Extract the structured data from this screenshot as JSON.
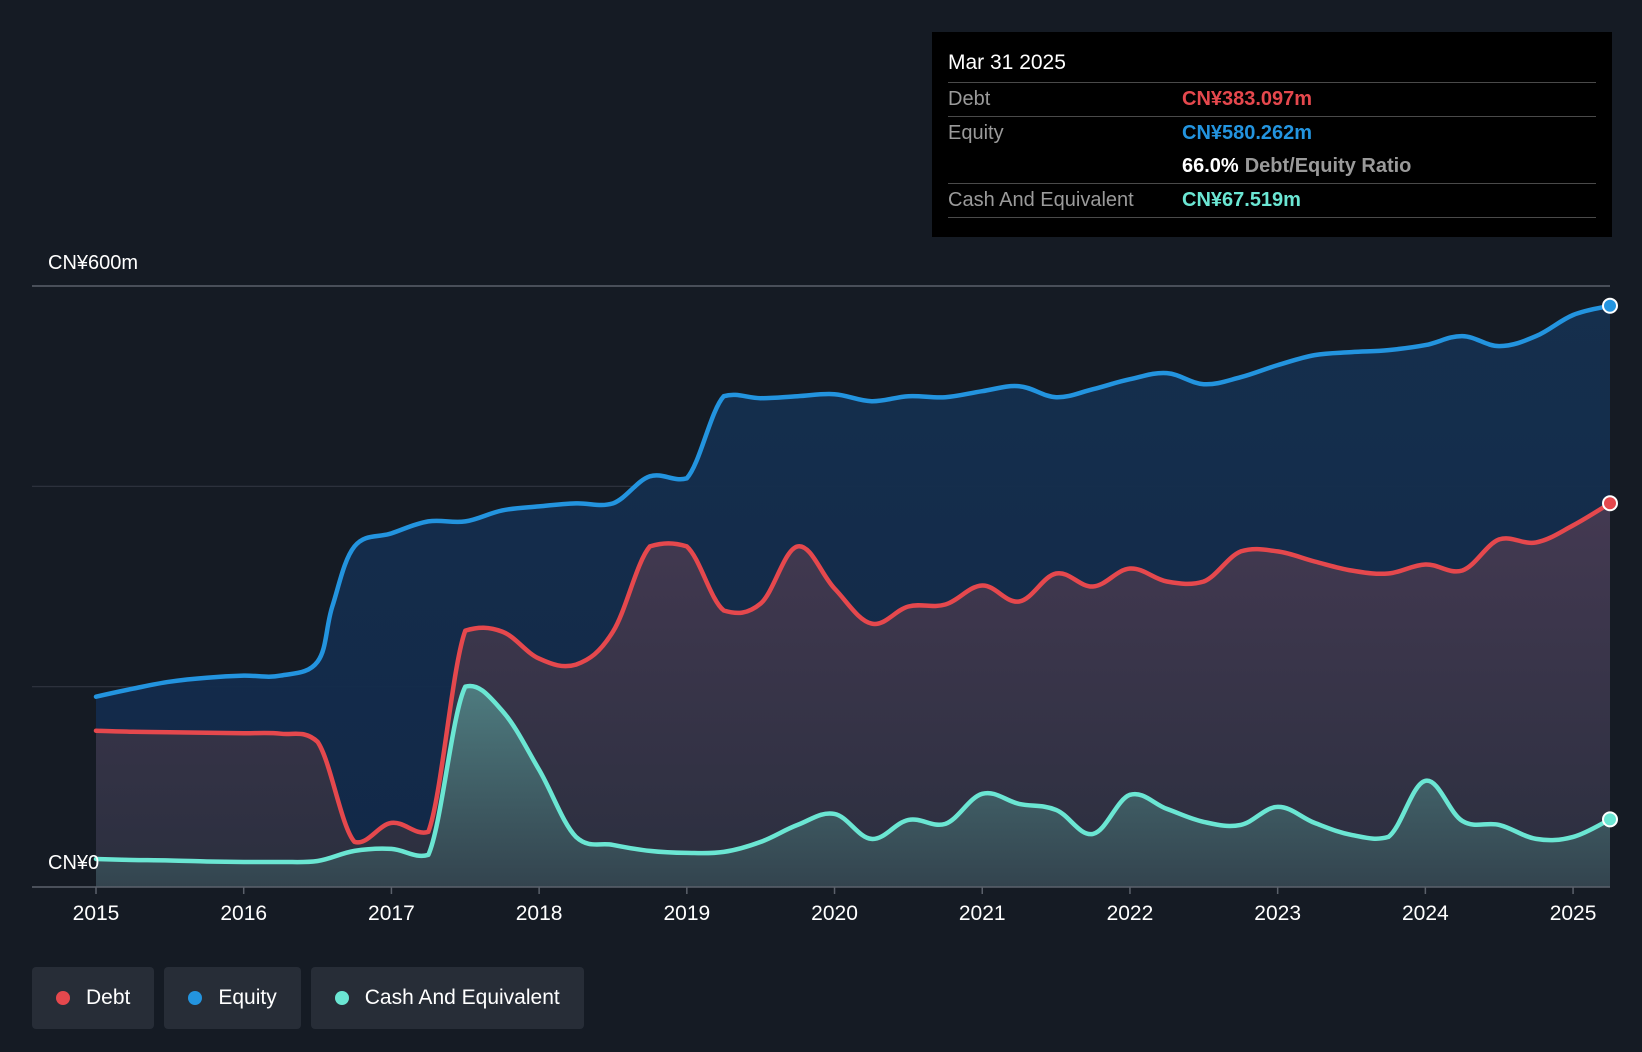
{
  "tooltip": {
    "date": "Mar 31 2025",
    "debt_label": "Debt",
    "debt_value": "CN¥383.097m",
    "equity_label": "Equity",
    "equity_value": "CN¥580.262m",
    "ratio_value": "66.0%",
    "ratio_label": "Debt/Equity Ratio",
    "cash_label": "Cash And Equivalent",
    "cash_value": "CN¥67.519m"
  },
  "legend": {
    "debt": "Debt",
    "equity": "Equity",
    "cash": "Cash And Equivalent"
  },
  "colors": {
    "debt": "#e5484d",
    "equity": "#2394df",
    "cash": "#6be6d3",
    "background": "#151b24"
  },
  "chart_data": {
    "type": "area",
    "title": "",
    "xlabel": "",
    "ylabel": "",
    "ylim": [
      0,
      600
    ],
    "xlim": [
      2015.0,
      2025.25
    ],
    "y_tick_labels": [
      {
        "value": 600,
        "label": "CN¥600m"
      },
      {
        "value": 0,
        "label": "CN¥0"
      }
    ],
    "gridlines": [
      0,
      200,
      400,
      600
    ],
    "x_ticks": [
      2015,
      2016,
      2017,
      2018,
      2019,
      2020,
      2021,
      2022,
      2023,
      2024,
      2025
    ],
    "series": [
      {
        "name": "Equity",
        "key": "equity",
        "points": [
          [
            2015.0,
            190
          ],
          [
            2015.25,
            198
          ],
          [
            2015.5,
            205
          ],
          [
            2015.75,
            209
          ],
          [
            2016.0,
            211
          ],
          [
            2016.25,
            211
          ],
          [
            2016.5,
            225
          ],
          [
            2016.6,
            280
          ],
          [
            2016.75,
            340
          ],
          [
            2017.0,
            353
          ],
          [
            2017.25,
            365
          ],
          [
            2017.5,
            365
          ],
          [
            2017.75,
            376
          ],
          [
            2018.0,
            380
          ],
          [
            2018.25,
            383
          ],
          [
            2018.5,
            383
          ],
          [
            2018.75,
            410
          ],
          [
            2019.0,
            408
          ],
          [
            2019.25,
            490
          ],
          [
            2019.5,
            488
          ],
          [
            2019.75,
            490
          ],
          [
            2020.0,
            492
          ],
          [
            2020.25,
            485
          ],
          [
            2020.5,
            490
          ],
          [
            2020.75,
            489
          ],
          [
            2021.0,
            495
          ],
          [
            2021.25,
            500
          ],
          [
            2021.5,
            489
          ],
          [
            2021.75,
            497
          ],
          [
            2022.0,
            507
          ],
          [
            2022.25,
            513
          ],
          [
            2022.5,
            502
          ],
          [
            2022.75,
            509
          ],
          [
            2023.0,
            521
          ],
          [
            2023.25,
            531
          ],
          [
            2023.5,
            534
          ],
          [
            2023.75,
            536
          ],
          [
            2024.0,
            541
          ],
          [
            2024.25,
            550
          ],
          [
            2024.5,
            540
          ],
          [
            2024.75,
            550
          ],
          [
            2025.0,
            571
          ],
          [
            2025.25,
            580.262
          ]
        ]
      },
      {
        "name": "Debt",
        "key": "debt",
        "points": [
          [
            2015.0,
            156
          ],
          [
            2015.25,
            155
          ],
          [
            2015.5,
            154.5
          ],
          [
            2015.75,
            154
          ],
          [
            2016.0,
            153.5
          ],
          [
            2016.25,
            153
          ],
          [
            2016.5,
            145
          ],
          [
            2016.75,
            45
          ],
          [
            2017.0,
            64
          ],
          [
            2017.25,
            55
          ],
          [
            2017.5,
            256
          ],
          [
            2017.75,
            255
          ],
          [
            2018.0,
            228
          ],
          [
            2018.25,
            222
          ],
          [
            2018.5,
            255
          ],
          [
            2018.75,
            340
          ],
          [
            2019.0,
            340
          ],
          [
            2019.25,
            276
          ],
          [
            2019.5,
            283
          ],
          [
            2019.75,
            340
          ],
          [
            2020.0,
            298
          ],
          [
            2020.25,
            263
          ],
          [
            2020.5,
            280
          ],
          [
            2020.75,
            282
          ],
          [
            2021.0,
            301
          ],
          [
            2021.25,
            285
          ],
          [
            2021.5,
            313
          ],
          [
            2021.75,
            300
          ],
          [
            2022.0,
            318
          ],
          [
            2022.25,
            305
          ],
          [
            2022.5,
            305
          ],
          [
            2022.75,
            335
          ],
          [
            2023.0,
            335
          ],
          [
            2023.25,
            325
          ],
          [
            2023.5,
            316
          ],
          [
            2023.75,
            313
          ],
          [
            2024.0,
            322
          ],
          [
            2024.25,
            316
          ],
          [
            2024.5,
            347
          ],
          [
            2024.75,
            344
          ],
          [
            2025.0,
            361
          ],
          [
            2025.25,
            383.097
          ]
        ]
      },
      {
        "name": "Cash And Equivalent",
        "key": "cash",
        "points": [
          [
            2015.0,
            28
          ],
          [
            2015.25,
            27
          ],
          [
            2015.5,
            26.5
          ],
          [
            2015.75,
            25.5
          ],
          [
            2016.0,
            25
          ],
          [
            2016.25,
            25
          ],
          [
            2016.5,
            26
          ],
          [
            2016.75,
            36
          ],
          [
            2017.0,
            38
          ],
          [
            2017.25,
            32
          ],
          [
            2017.5,
            200
          ],
          [
            2017.75,
            176
          ],
          [
            2018.0,
            117
          ],
          [
            2018.25,
            50
          ],
          [
            2018.5,
            42
          ],
          [
            2018.75,
            36
          ],
          [
            2019.0,
            34
          ],
          [
            2019.25,
            35
          ],
          [
            2019.5,
            45
          ],
          [
            2019.75,
            62
          ],
          [
            2020.0,
            73
          ],
          [
            2020.25,
            48
          ],
          [
            2020.5,
            67
          ],
          [
            2020.75,
            63
          ],
          [
            2021.0,
            93
          ],
          [
            2021.25,
            83
          ],
          [
            2021.5,
            77
          ],
          [
            2021.75,
            53
          ],
          [
            2022.0,
            92
          ],
          [
            2022.25,
            78
          ],
          [
            2022.5,
            65
          ],
          [
            2022.75,
            62
          ],
          [
            2023.0,
            80
          ],
          [
            2023.25,
            64
          ],
          [
            2023.5,
            52
          ],
          [
            2023.75,
            50
          ],
          [
            2024.0,
            106
          ],
          [
            2024.25,
            66
          ],
          [
            2024.5,
            62
          ],
          [
            2024.75,
            48
          ],
          [
            2025.0,
            50
          ],
          [
            2025.25,
            67.519
          ]
        ]
      }
    ]
  }
}
